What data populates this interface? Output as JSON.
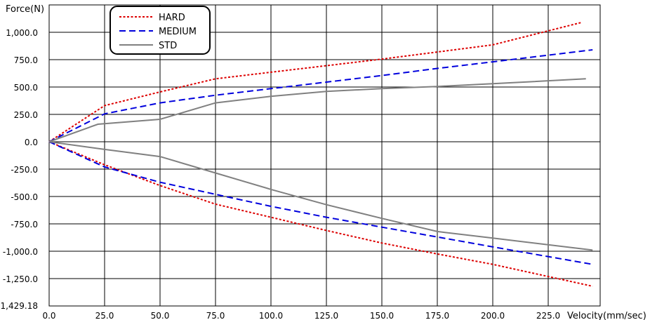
{
  "chart_data": {
    "type": "line",
    "ylabel": "Force(N)",
    "xlabel": "Velocity(mm/sec)",
    "x_ticks": [
      "0.0",
      "25.0",
      "50.0",
      "75.0",
      "100.0",
      "125.0",
      "150.0",
      "175.0",
      "200.0",
      "225.0"
    ],
    "y_ticks": [
      "1,000.0",
      "750.0",
      "500.0",
      "250.0",
      "0.0",
      "-250.0",
      "-500.0",
      "-750.0",
      "-1,000.0",
      "-1,250.0",
      "-1,429.18"
    ],
    "y_tick_values": [
      1000,
      750,
      500,
      250,
      0,
      -250,
      -500,
      -750,
      -1000,
      -1250,
      -1429.18
    ],
    "x_tick_values": [
      0,
      25,
      50,
      75,
      100,
      125,
      150,
      175,
      200,
      225
    ],
    "xlim": [
      0,
      247
    ],
    "ylim": [
      -1429.18,
      1250
    ],
    "grid": true,
    "legend_position": "top-left",
    "series": [
      {
        "name": "HARD",
        "color": "#dd0000",
        "dash": "dotted",
        "extension": [
          [
            0,
            0
          ],
          [
            25,
            330
          ],
          [
            50,
            455
          ],
          [
            75,
            575
          ],
          [
            100,
            635
          ],
          [
            125,
            695
          ],
          [
            150,
            755
          ],
          [
            175,
            820
          ],
          [
            200,
            885
          ],
          [
            240,
            1090
          ]
        ],
        "compression": [
          [
            0,
            0
          ],
          [
            25,
            -210
          ],
          [
            50,
            -400
          ],
          [
            75,
            -570
          ],
          [
            100,
            -690
          ],
          [
            125,
            -810
          ],
          [
            150,
            -925
          ],
          [
            175,
            -1025
          ],
          [
            200,
            -1120
          ],
          [
            245,
            -1300
          ]
        ]
      },
      {
        "name": "MEDIUM",
        "color": "#0000dd",
        "dash": "dashed",
        "extension": [
          [
            0,
            0
          ],
          [
            25,
            255
          ],
          [
            50,
            355
          ],
          [
            75,
            425
          ],
          [
            100,
            485
          ],
          [
            125,
            545
          ],
          [
            150,
            605
          ],
          [
            175,
            670
          ],
          [
            200,
            730
          ],
          [
            245,
            840
          ]
        ],
        "compression": [
          [
            0,
            0
          ],
          [
            25,
            -230
          ],
          [
            50,
            -370
          ],
          [
            75,
            -480
          ],
          [
            100,
            -590
          ],
          [
            125,
            -690
          ],
          [
            150,
            -780
          ],
          [
            175,
            -870
          ],
          [
            200,
            -960
          ],
          [
            245,
            -1120
          ]
        ]
      },
      {
        "name": "STD",
        "color": "#808080",
        "dash": "solid",
        "extension": [
          [
            0,
            0
          ],
          [
            22,
            160
          ],
          [
            50,
            205
          ],
          [
            75,
            355
          ],
          [
            100,
            415
          ],
          [
            125,
            460
          ],
          [
            150,
            485
          ],
          [
            175,
            505
          ],
          [
            200,
            530
          ],
          [
            242,
            575
          ]
        ],
        "compression": [
          [
            0,
            0
          ],
          [
            25,
            -70
          ],
          [
            50,
            -135
          ],
          [
            75,
            -285
          ],
          [
            100,
            -435
          ],
          [
            125,
            -575
          ],
          [
            150,
            -700
          ],
          [
            175,
            -820
          ],
          [
            200,
            -880
          ],
          [
            245,
            -990
          ]
        ]
      }
    ]
  }
}
